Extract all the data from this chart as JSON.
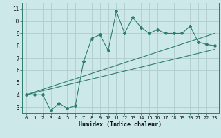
{
  "title": "",
  "xlabel": "Humidex (Indice chaleur)",
  "bg_color": "#cce8e8",
  "grid_color": "#b0cccc",
  "line_color": "#2d7d6e",
  "xlim": [
    -0.5,
    23.5
  ],
  "ylim": [
    2.5,
    11.5
  ],
  "xticks": [
    0,
    1,
    2,
    3,
    4,
    5,
    6,
    7,
    8,
    9,
    10,
    11,
    12,
    13,
    14,
    15,
    16,
    17,
    18,
    19,
    20,
    21,
    22,
    23
  ],
  "yticks": [
    3,
    4,
    5,
    6,
    7,
    8,
    9,
    10,
    11
  ],
  "data_x": [
    0,
    1,
    2,
    3,
    4,
    5,
    6,
    7,
    8,
    9,
    10,
    11,
    12,
    13,
    14,
    15,
    16,
    17,
    18,
    19,
    20,
    21,
    22,
    23
  ],
  "data_y": [
    4.0,
    4.0,
    4.0,
    2.7,
    3.3,
    2.9,
    3.1,
    6.7,
    8.6,
    8.9,
    7.6,
    10.8,
    9.0,
    10.3,
    9.5,
    9.0,
    9.3,
    9.0,
    9.0,
    9.0,
    9.6,
    8.3,
    8.1,
    8.0
  ],
  "line1_x": [
    0,
    23
  ],
  "line1_y": [
    4.0,
    7.7
  ],
  "line2_x": [
    0,
    23
  ],
  "line2_y": [
    4.0,
    9.0
  ]
}
